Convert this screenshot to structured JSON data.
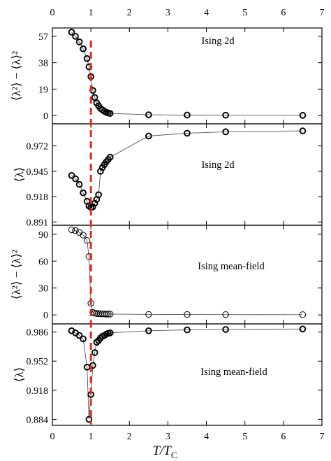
{
  "chart_data": [
    {
      "type": "line",
      "panel_label": "Ising 2d",
      "ylabel": "⟨λ²⟩ − ⟨λ⟩²",
      "xlim": [
        0,
        7
      ],
      "ylim": [
        -6,
        63
      ],
      "yticks": [
        "0",
        "19",
        "38",
        "57"
      ],
      "ytick_values": [
        0,
        19,
        38,
        57
      ],
      "marker": "open-circle-bold",
      "series": [
        {
          "x": [
            0.5,
            0.6,
            0.7,
            0.8,
            0.9,
            0.95,
            1.0,
            1.05,
            1.1,
            1.15,
            1.2,
            1.25,
            1.3,
            1.35,
            1.4,
            1.45,
            1.5,
            2.5,
            3.5,
            4.5,
            6.5
          ],
          "y": [
            60,
            57,
            53,
            48,
            41,
            35,
            28,
            18,
            13,
            9,
            7,
            5,
            4,
            3,
            2.3,
            1.8,
            1.5,
            0.5,
            0.3,
            0.2,
            0.1
          ]
        }
      ]
    },
    {
      "type": "line",
      "panel_label": "Ising 2d",
      "ylabel": "⟨λ⟩",
      "xlim": [
        0,
        7
      ],
      "ylim": [
        0.8875,
        0.9955
      ],
      "yticks": [
        "0.891",
        "0.918",
        "0.945",
        "0.972"
      ],
      "ytick_values": [
        0.891,
        0.918,
        0.945,
        0.972
      ],
      "marker": "open-circle-bold",
      "series": [
        {
          "x": [
            0.5,
            0.6,
            0.7,
            0.8,
            0.9,
            0.95,
            1.0,
            1.05,
            1.1,
            1.15,
            1.2,
            1.25,
            1.3,
            1.35,
            1.4,
            1.45,
            1.5,
            2.5,
            3.5,
            4.5,
            6.5
          ],
          "y": [
            0.9405,
            0.937,
            0.931,
            0.922,
            0.913,
            0.908,
            0.9065,
            0.907,
            0.911,
            0.915,
            0.92,
            0.945,
            0.949,
            0.952,
            0.955,
            0.9575,
            0.96,
            0.9825,
            0.9855,
            0.987,
            0.988
          ]
        }
      ]
    },
    {
      "type": "line",
      "panel_label": "Ising mean-field",
      "ylabel": "⟨λ²⟩ − ⟨λ⟩²",
      "xlim": [
        0,
        7
      ],
      "ylim": [
        -10,
        100
      ],
      "yticks": [
        "0",
        "30",
        "60",
        "90"
      ],
      "ytick_values": [
        0,
        30,
        60,
        90
      ],
      "marker": "open-circle-thin",
      "series": [
        {
          "x": [
            0.5,
            0.6,
            0.7,
            0.8,
            0.9,
            0.95,
            1.0,
            1.05,
            1.1,
            1.15,
            1.2,
            1.25,
            1.3,
            1.35,
            1.4,
            1.45,
            1.5,
            2.5,
            3.5,
            4.5,
            6.5
          ],
          "y": [
            95,
            94,
            92,
            89,
            83,
            65,
            13,
            3,
            2,
            1.6,
            1.4,
            1.3,
            1.2,
            1.1,
            1.0,
            1.0,
            1.0,
            0.6,
            0.5,
            0.4,
            0.3
          ]
        }
      ]
    },
    {
      "type": "line",
      "panel_label": "Ising mean-field",
      "ylabel": "⟨λ⟩",
      "xlim": [
        0,
        7
      ],
      "ylim": [
        0.877,
        0.9955
      ],
      "yticks": [
        "0.884",
        "0.918",
        "0.952",
        "0.986"
      ],
      "ytick_values": [
        0.884,
        0.918,
        0.952,
        0.986
      ],
      "marker": "open-circle-bold",
      "series": [
        {
          "x": [
            0.5,
            0.6,
            0.7,
            0.8,
            0.9,
            0.95,
            1.0,
            1.05,
            1.1,
            1.15,
            1.2,
            1.25,
            1.3,
            1.35,
            1.4,
            1.45,
            1.5,
            2.5,
            3.5,
            4.5,
            6.5
          ],
          "y": [
            0.9875,
            0.985,
            0.982,
            0.978,
            0.945,
            0.884,
            0.913,
            0.947,
            0.962,
            0.974,
            0.976,
            0.979,
            0.981,
            0.982,
            0.9835,
            0.9845,
            0.985,
            0.9875,
            0.9885,
            0.989,
            0.9895
          ]
        }
      ]
    }
  ],
  "x_axis": {
    "label_main": "T/T",
    "label_sub": "C",
    "ticks": [
      "0",
      "1",
      "2",
      "3",
      "4",
      "5",
      "6",
      "7"
    ],
    "tick_values": [
      0,
      1,
      2,
      3,
      4,
      5,
      6,
      7
    ]
  },
  "critical_line": {
    "x": 1,
    "color": "#e02b20",
    "style": "dashed"
  },
  "colors": {
    "axes": "#000000",
    "markers": "#000000",
    "lines": "#555555",
    "critical": "#e02b20"
  }
}
